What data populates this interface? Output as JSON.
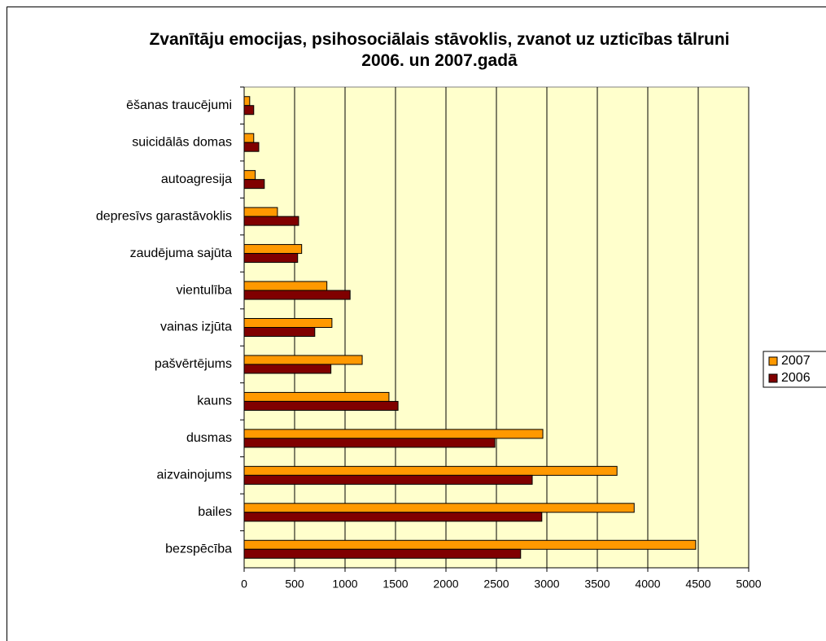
{
  "chart_data": {
    "type": "bar",
    "orientation": "horizontal",
    "title": "Zvanītāju emocijas, psihosociālais stāvoklis, zvanot uz uzticības tālruni 2006. un 2007.gadā",
    "categories": [
      "ēšanas traucējumi",
      "suicidālās domas",
      "autoagresija",
      "depresīvs garastāvoklis",
      "zaudējuma sajūta",
      "vientulība",
      "vainas izjūta",
      "pašvērtējums",
      "kauns",
      "dusmas",
      "aizvainojums",
      "bailes",
      "bezspēcība"
    ],
    "series": [
      {
        "name": "2007",
        "color": "#ff9900",
        "values": [
          55,
          95,
          110,
          330,
          570,
          820,
          870,
          1170,
          1435,
          2960,
          3695,
          3865,
          4475
        ]
      },
      {
        "name": "2006",
        "color": "#800000",
        "values": [
          95,
          145,
          200,
          540,
          530,
          1050,
          700,
          860,
          1525,
          2485,
          2855,
          2950,
          2740
        ]
      }
    ],
    "xlim": [
      0,
      5000
    ],
    "xticks": [
      0,
      500,
      1000,
      1500,
      2000,
      2500,
      3000,
      3500,
      4000,
      4500,
      5000
    ],
    "grid": true,
    "legend": "right",
    "plot_background": "#ffffcc"
  }
}
